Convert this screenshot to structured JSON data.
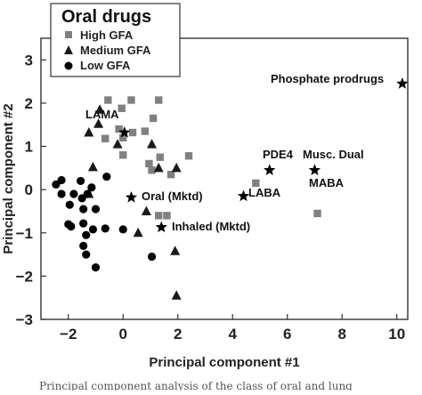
{
  "chart_data": {
    "type": "scatter",
    "xlabel": "Principal component #1",
    "ylabel": "Principal component #2",
    "xlim": [
      -3,
      10.4
    ],
    "ylim": [
      -3,
      3.5
    ],
    "xticks": [
      -2,
      0,
      2,
      4,
      6,
      8,
      10
    ],
    "yticks": [
      -3,
      -2,
      -1,
      0,
      1,
      2,
      3
    ],
    "grid": false,
    "legend": {
      "title": "Oral drugs",
      "placement": "top-left",
      "entries": [
        "High GFA",
        "Medium GFA",
        "Low GFA"
      ]
    },
    "colors": {
      "high": "#808080",
      "medium": "#1a1a1a",
      "low": "#000000",
      "star": "#000000"
    },
    "series": [
      {
        "name": "High GFA",
        "marker": "square",
        "points": [
          [
            -0.55,
            2.07
          ],
          [
            0.3,
            2.07
          ],
          [
            1.3,
            2.07
          ],
          [
            -0.05,
            1.88
          ],
          [
            1.1,
            1.65
          ],
          [
            -0.15,
            1.4
          ],
          [
            -0.65,
            1.18
          ],
          [
            0.0,
            1.2
          ],
          [
            0.35,
            1.32
          ],
          [
            0.8,
            1.35
          ],
          [
            1.35,
            0.75
          ],
          [
            2.4,
            0.78
          ],
          [
            0.95,
            0.6
          ],
          [
            1.05,
            0.45
          ],
          [
            1.75,
            0.35
          ],
          [
            0.0,
            0.8
          ],
          [
            1.3,
            -0.6
          ],
          [
            1.6,
            -0.6
          ],
          [
            4.85,
            0.15
          ],
          [
            7.1,
            -0.55
          ]
        ]
      },
      {
        "name": "Medium GFA",
        "marker": "triangle",
        "points": [
          [
            -0.85,
            1.85
          ],
          [
            -0.9,
            1.52
          ],
          [
            -1.25,
            1.32
          ],
          [
            -1.1,
            0.52
          ],
          [
            -1.25,
            -0.1
          ],
          [
            -0.2,
            1.05
          ],
          [
            1.05,
            1.05
          ],
          [
            1.3,
            0.5
          ],
          [
            1.95,
            0.5
          ],
          [
            0.85,
            -0.5
          ],
          [
            0.55,
            -1.0
          ],
          [
            1.9,
            -1.42
          ],
          [
            1.95,
            -2.45
          ]
        ]
      },
      {
        "name": "Low GFA",
        "marker": "circle",
        "points": [
          [
            -2.45,
            0.12
          ],
          [
            -2.25,
            0.22
          ],
          [
            -1.55,
            0.2
          ],
          [
            -2.25,
            -0.1
          ],
          [
            -1.8,
            -0.1
          ],
          [
            -1.5,
            -0.2
          ],
          [
            -1.3,
            -0.1
          ],
          [
            -1.15,
            0.05
          ],
          [
            -0.6,
            0.3
          ],
          [
            -1.95,
            -0.35
          ],
          [
            -1.45,
            -0.45
          ],
          [
            -1.0,
            -0.45
          ],
          [
            -2.0,
            -0.8
          ],
          [
            -1.9,
            -0.85
          ],
          [
            -1.45,
            -0.78
          ],
          [
            -1.1,
            -0.92
          ],
          [
            -0.65,
            -0.9
          ],
          [
            -1.35,
            -1.05
          ],
          [
            -1.45,
            -1.3
          ],
          [
            -1.35,
            -1.5
          ],
          [
            -1.0,
            -1.8
          ],
          [
            0.0,
            -0.92
          ],
          [
            1.05,
            -1.55
          ]
        ]
      }
    ],
    "stars": [
      {
        "label": "Phosphate prodrugs",
        "x": 10.2,
        "y": 2.45
      },
      {
        "label": "LAMA",
        "x": 0.05,
        "y": 1.32
      },
      {
        "label": "PDE4",
        "x": 5.35,
        "y": 0.45
      },
      {
        "label": "Musc. Dual",
        "x": 7.0,
        "y": 0.45
      },
      {
        "label": "MABA",
        "x": 7.0,
        "y": 0.45
      },
      {
        "label": "LABA",
        "x": 4.4,
        "y": -0.15
      },
      {
        "label": "Oral (Mktd)",
        "x": 0.3,
        "y": -0.18
      },
      {
        "label": "Inhaled (Mktd)",
        "x": 1.4,
        "y": -0.87
      }
    ]
  },
  "caption": "Principal component analysis of the class of oral and lung"
}
